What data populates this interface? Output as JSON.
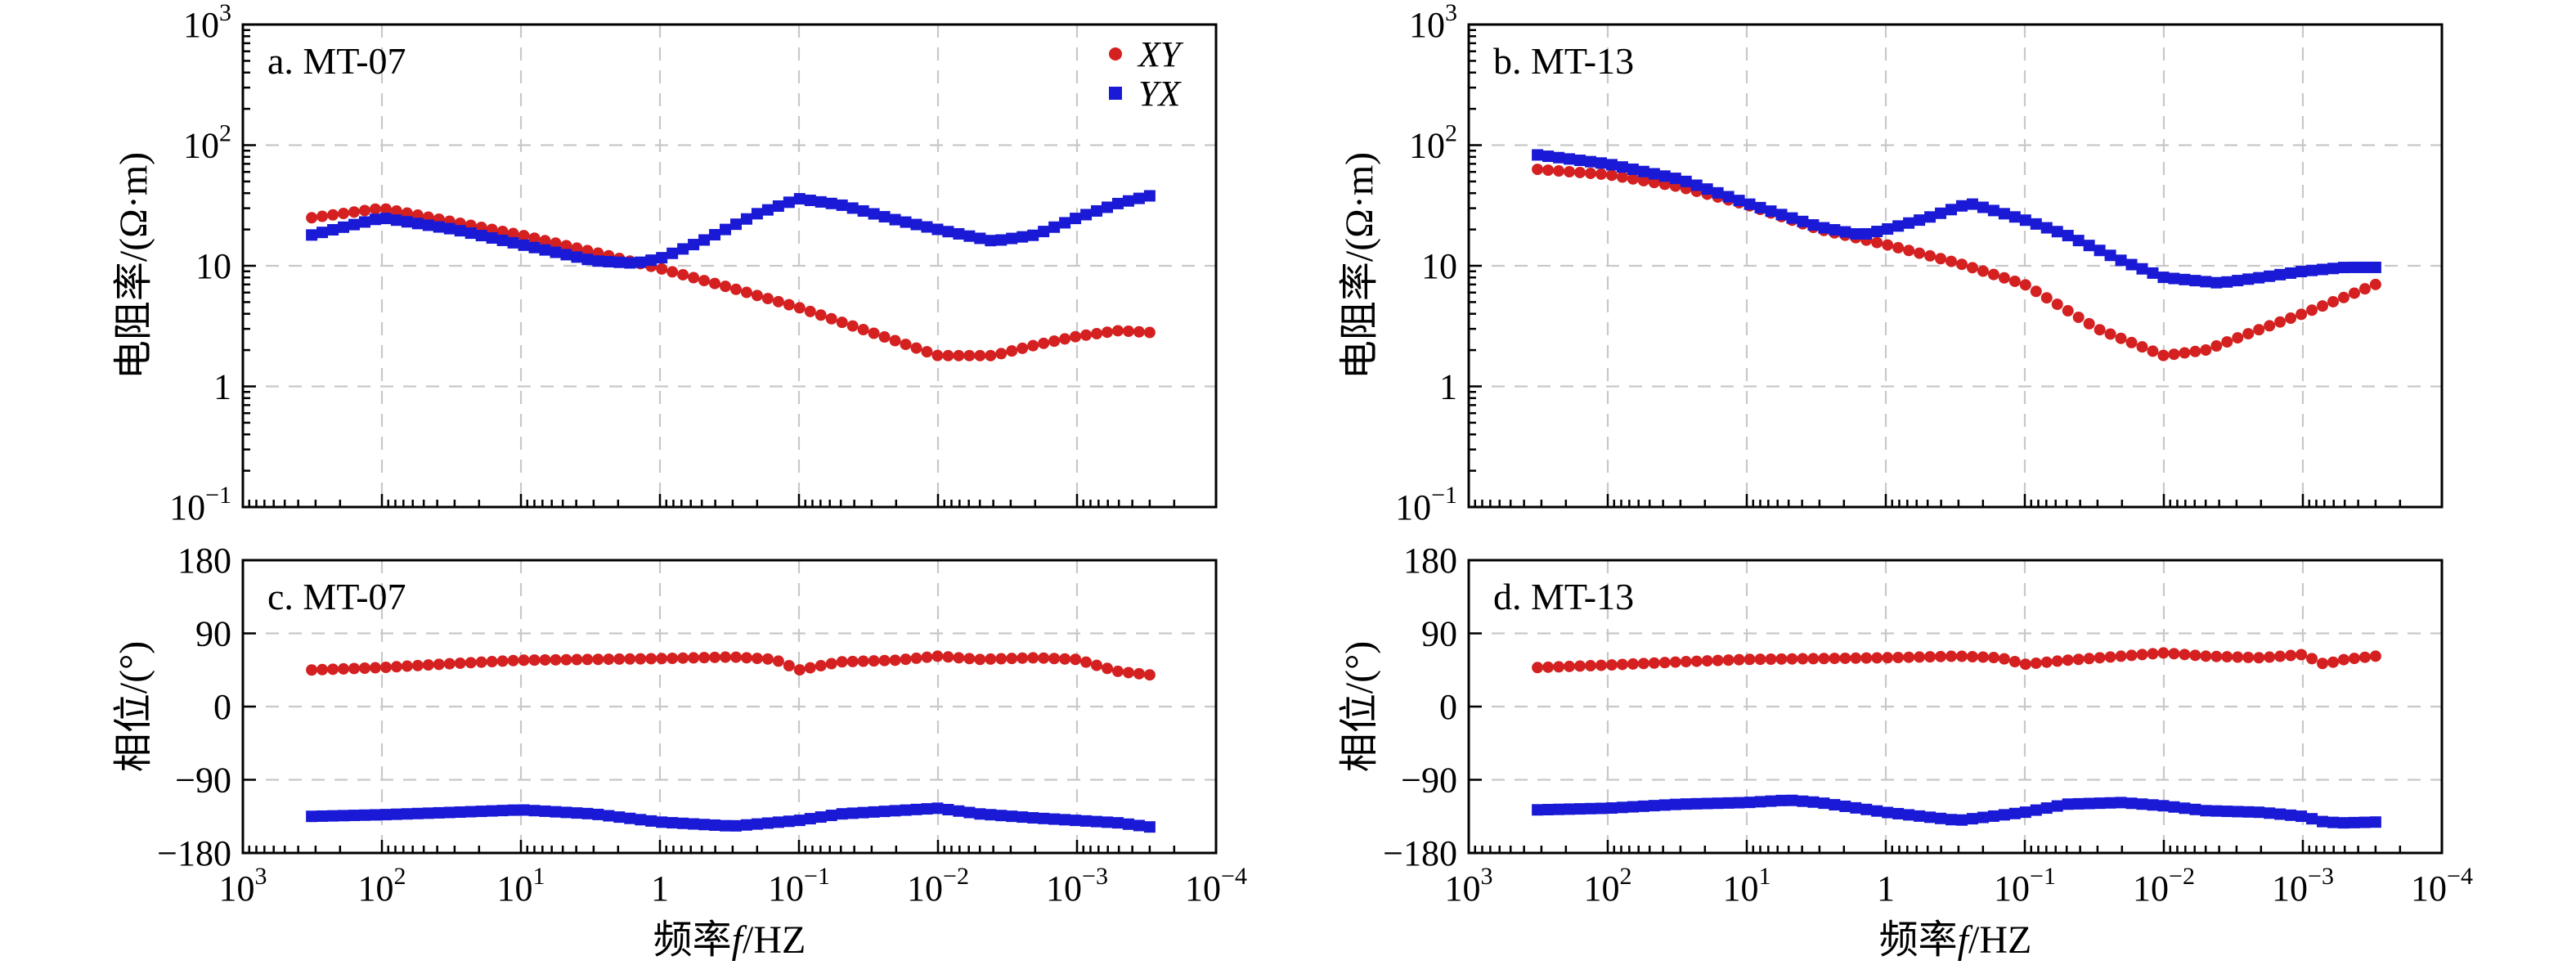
{
  "colors": {
    "xy": "#d42020",
    "yx": "#1a1ad6",
    "grid": "#c8c8c8"
  },
  "xlabel_parts": {
    "pre": "频率",
    "var": "f",
    "post": "/HZ"
  },
  "legend": {
    "xy": "XY",
    "yx": "YX"
  },
  "chart_data": [
    {
      "type": "scatter",
      "panel": "a",
      "title": "a. MT-07",
      "ylabel": "电阻率/(Ω·m)",
      "yscale": "log",
      "xscale": "log",
      "x_reversed": true,
      "xlim": [
        1000,
        0.0001
      ],
      "ylim": [
        0.1,
        1000
      ],
      "yticks": [
        "10-1",
        "1",
        "10",
        "10^2",
        "10^3"
      ],
      "grid": true,
      "legend_position": "top-right",
      "series": [
        {
          "name": "XY",
          "marker": "circle",
          "points": [
            [
              320,
              25
            ],
            [
              100,
              30
            ],
            [
              30,
              23
            ],
            [
              10,
              18
            ],
            [
              3,
              13
            ],
            [
              1,
              9.5
            ],
            [
              0.3,
              6.5
            ],
            [
              0.1,
              4.5
            ],
            [
              0.03,
              2.8
            ],
            [
              0.01,
              1.8
            ],
            [
              0.004,
              1.8
            ],
            [
              0.002,
              2.2
            ],
            [
              0.001,
              2.6
            ],
            [
              0.0005,
              2.9
            ],
            [
              0.0003,
              2.8
            ]
          ]
        },
        {
          "name": "YX",
          "marker": "square",
          "points": [
            [
              320,
              18
            ],
            [
              100,
              25
            ],
            [
              30,
              20
            ],
            [
              10,
              15
            ],
            [
              3,
              11
            ],
            [
              1.5,
              10.5
            ],
            [
              1,
              11.5
            ],
            [
              0.5,
              16
            ],
            [
              0.2,
              27
            ],
            [
              0.1,
              36
            ],
            [
              0.05,
              32
            ],
            [
              0.02,
              24
            ],
            [
              0.01,
              20
            ],
            [
              0.004,
              16
            ],
            [
              0.002,
              18
            ],
            [
              0.001,
              25
            ],
            [
              0.0005,
              33
            ],
            [
              0.0003,
              38
            ]
          ]
        }
      ]
    },
    {
      "type": "scatter",
      "panel": "b",
      "title": "b. MT-13",
      "ylabel": "电阻率/(Ω·m)",
      "yscale": "log",
      "xscale": "log",
      "x_reversed": true,
      "xlim": [
        1000,
        0.0001
      ],
      "ylim": [
        0.1,
        1000
      ],
      "yticks": [
        "10-1",
        "1",
        "10",
        "10^2",
        "10^3"
      ],
      "grid": true,
      "series": [
        {
          "name": "XY",
          "marker": "circle",
          "points": [
            [
              320,
              63
            ],
            [
              100,
              57
            ],
            [
              30,
              45
            ],
            [
              10,
              32
            ],
            [
              3,
              20
            ],
            [
              1,
              15
            ],
            [
              0.3,
              10.5
            ],
            [
              0.1,
              7
            ],
            [
              0.03,
              3
            ],
            [
              0.01,
              1.8
            ],
            [
              0.005,
              2
            ],
            [
              0.002,
              3
            ],
            [
              0.001,
              4
            ],
            [
              0.0005,
              5.5
            ],
            [
              0.0003,
              7
            ]
          ]
        },
        {
          "name": "YX",
          "marker": "square",
          "points": [
            [
              320,
              83
            ],
            [
              100,
              70
            ],
            [
              30,
              52
            ],
            [
              10,
              33
            ],
            [
              3,
              21
            ],
            [
              1.5,
              18
            ],
            [
              1,
              20
            ],
            [
              0.5,
              25
            ],
            [
              0.25,
              33
            ],
            [
              0.1,
              24
            ],
            [
              0.05,
              18
            ],
            [
              0.02,
              11
            ],
            [
              0.01,
              8
            ],
            [
              0.004,
              7.2
            ],
            [
              0.002,
              8
            ],
            [
              0.001,
              9
            ],
            [
              0.0005,
              9.7
            ],
            [
              0.0003,
              9.7
            ]
          ]
        }
      ]
    },
    {
      "type": "scatter",
      "panel": "c",
      "title": "c. MT-07",
      "ylabel": "相位/(°)",
      "xscale": "log",
      "x_reversed": true,
      "xlim": [
        1000,
        0.0001
      ],
      "xticks": [
        "10^3",
        "10^2",
        "10^1",
        "1",
        "10^-1",
        "10^-2",
        "10^-3",
        "10^-4"
      ],
      "ylim": [
        -180,
        180
      ],
      "yticks": [
        180,
        90,
        0,
        -90,
        -180
      ],
      "grid": true,
      "series": [
        {
          "name": "XY",
          "marker": "circle",
          "points": [
            [
              320,
              45
            ],
            [
              100,
              48
            ],
            [
              30,
              53
            ],
            [
              10,
              57
            ],
            [
              3,
              58
            ],
            [
              1,
              59
            ],
            [
              0.3,
              61
            ],
            [
              0.15,
              58
            ],
            [
              0.1,
              45
            ],
            [
              0.05,
              55
            ],
            [
              0.02,
              57
            ],
            [
              0.01,
              62
            ],
            [
              0.005,
              58
            ],
            [
              0.002,
              60
            ],
            [
              0.001,
              58
            ],
            [
              0.0007,
              50
            ],
            [
              0.0005,
              43
            ],
            [
              0.0003,
              39
            ]
          ]
        },
        {
          "name": "YX",
          "marker": "square",
          "points": [
            [
              320,
              -135
            ],
            [
              100,
              -133
            ],
            [
              30,
              -130
            ],
            [
              10,
              -127
            ],
            [
              3,
              -132
            ],
            [
              1,
              -142
            ],
            [
              0.3,
              -147
            ],
            [
              0.1,
              -140
            ],
            [
              0.05,
              -132
            ],
            [
              0.02,
              -128
            ],
            [
              0.01,
              -125
            ],
            [
              0.005,
              -132
            ],
            [
              0.002,
              -137
            ],
            [
              0.001,
              -140
            ],
            [
              0.0005,
              -143
            ],
            [
              0.0003,
              -148
            ]
          ]
        }
      ]
    },
    {
      "type": "scatter",
      "panel": "d",
      "title": "d. MT-13",
      "ylabel": "相位/(°)",
      "xscale": "log",
      "x_reversed": true,
      "xlim": [
        1000,
        0.0001
      ],
      "xticks": [
        "10^3",
        "10^2",
        "10^1",
        "1",
        "10^-1",
        "10^-2",
        "10^-3",
        "10^-4"
      ],
      "ylim": [
        -180,
        180
      ],
      "yticks": [
        180,
        90,
        0,
        -90,
        -180
      ],
      "grid": true,
      "series": [
        {
          "name": "XY",
          "marker": "circle",
          "points": [
            [
              320,
              48
            ],
            [
              100,
              51
            ],
            [
              30,
              55
            ],
            [
              10,
              58
            ],
            [
              3,
              59
            ],
            [
              1,
              60
            ],
            [
              0.3,
              62
            ],
            [
              0.15,
              60
            ],
            [
              0.1,
              52
            ],
            [
              0.05,
              57
            ],
            [
              0.02,
              62
            ],
            [
              0.01,
              66
            ],
            [
              0.005,
              62
            ],
            [
              0.002,
              60
            ],
            [
              0.001,
              64
            ],
            [
              0.0007,
              52
            ],
            [
              0.0005,
              58
            ],
            [
              0.0003,
              62
            ]
          ]
        },
        {
          "name": "YX",
          "marker": "square",
          "points": [
            [
              320,
              -127
            ],
            [
              100,
              -125
            ],
            [
              30,
              -120
            ],
            [
              10,
              -118
            ],
            [
              5,
              -115
            ],
            [
              3,
              -118
            ],
            [
              1,
              -130
            ],
            [
              0.3,
              -140
            ],
            [
              0.1,
              -130
            ],
            [
              0.05,
              -120
            ],
            [
              0.02,
              -118
            ],
            [
              0.01,
              -122
            ],
            [
              0.005,
              -128
            ],
            [
              0.002,
              -130
            ],
            [
              0.001,
              -135
            ],
            [
              0.0007,
              -142
            ],
            [
              0.0005,
              -143
            ],
            [
              0.0003,
              -142
            ]
          ]
        }
      ]
    }
  ]
}
